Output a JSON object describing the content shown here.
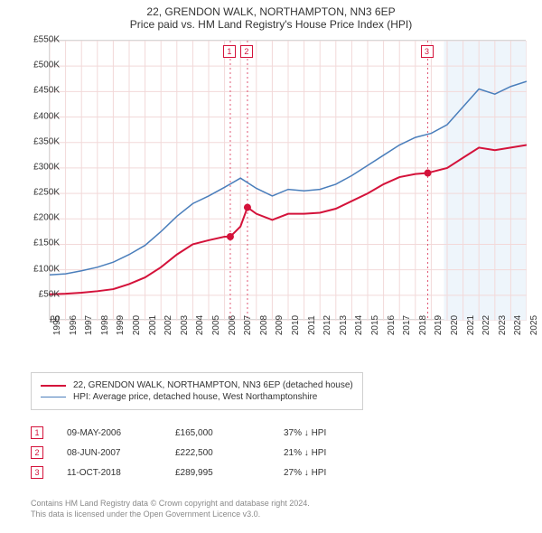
{
  "title": {
    "line1": "22, GRENDON WALK, NORTHAMPTON, NN3 6EP",
    "line2": "Price paid vs. HM Land Registry's House Price Index (HPI)"
  },
  "chart": {
    "type": "line",
    "background_color": "#ffffff",
    "grid_color": "#f2d9d9",
    "axis_color": "#d7d7d7",
    "yaxis": {
      "min": 0,
      "max": 550000,
      "step": 50000,
      "tick_labels": [
        "£0",
        "£50K",
        "£100K",
        "£150K",
        "£200K",
        "£250K",
        "£300K",
        "£350K",
        "£400K",
        "£450K",
        "£500K",
        "£550K"
      ],
      "label_fontsize": 10,
      "label_color": "#333333"
    },
    "xaxis": {
      "min": 1995,
      "max": 2025,
      "tick_years": [
        1995,
        1996,
        1997,
        1998,
        1999,
        2000,
        2001,
        2002,
        2003,
        2004,
        2005,
        2006,
        2007,
        2008,
        2009,
        2010,
        2011,
        2012,
        2013,
        2014,
        2015,
        2016,
        2017,
        2018,
        2019,
        2020,
        2021,
        2022,
        2023,
        2024,
        2025
      ],
      "label_fontsize": 10,
      "label_color": "#333333"
    },
    "forecast_band": {
      "start_year": 2019.8,
      "end_year": 2025,
      "fill": "#eef5fb"
    },
    "series": [
      {
        "name": "property",
        "label": "22, GRENDON WALK, NORTHAMPTON, NN3 6EP (detached house)",
        "color": "#d4123a",
        "width": 2,
        "points": [
          [
            1995,
            52000
          ],
          [
            1996,
            53000
          ],
          [
            1997,
            55000
          ],
          [
            1998,
            58000
          ],
          [
            1999,
            62000
          ],
          [
            2000,
            72000
          ],
          [
            2001,
            85000
          ],
          [
            2002,
            105000
          ],
          [
            2003,
            130000
          ],
          [
            2004,
            150000
          ],
          [
            2005,
            158000
          ],
          [
            2006,
            165000
          ],
          [
            2006.36,
            165000
          ],
          [
            2007,
            185000
          ],
          [
            2007.44,
            222500
          ],
          [
            2008,
            210000
          ],
          [
            2009,
            198000
          ],
          [
            2010,
            210000
          ],
          [
            2011,
            210000
          ],
          [
            2012,
            212000
          ],
          [
            2013,
            220000
          ],
          [
            2014,
            235000
          ],
          [
            2015,
            250000
          ],
          [
            2016,
            268000
          ],
          [
            2017,
            282000
          ],
          [
            2018,
            288000
          ],
          [
            2018.78,
            289995
          ],
          [
            2019,
            292000
          ],
          [
            2020,
            300000
          ],
          [
            2021,
            320000
          ],
          [
            2022,
            340000
          ],
          [
            2023,
            335000
          ],
          [
            2024,
            340000
          ],
          [
            2025,
            345000
          ]
        ]
      },
      {
        "name": "hpi",
        "label": "HPI: Average price, detached house, West Northamptonshire",
        "color": "#4a7ebb",
        "width": 1.5,
        "points": [
          [
            1995,
            90000
          ],
          [
            1996,
            92000
          ],
          [
            1997,
            98000
          ],
          [
            1998,
            105000
          ],
          [
            1999,
            115000
          ],
          [
            2000,
            130000
          ],
          [
            2001,
            148000
          ],
          [
            2002,
            175000
          ],
          [
            2003,
            205000
          ],
          [
            2004,
            230000
          ],
          [
            2005,
            245000
          ],
          [
            2006,
            262000
          ],
          [
            2007,
            280000
          ],
          [
            2008,
            260000
          ],
          [
            2009,
            245000
          ],
          [
            2010,
            258000
          ],
          [
            2011,
            255000
          ],
          [
            2012,
            258000
          ],
          [
            2013,
            268000
          ],
          [
            2014,
            285000
          ],
          [
            2015,
            305000
          ],
          [
            2016,
            325000
          ],
          [
            2017,
            345000
          ],
          [
            2018,
            360000
          ],
          [
            2019,
            368000
          ],
          [
            2020,
            385000
          ],
          [
            2021,
            420000
          ],
          [
            2022,
            455000
          ],
          [
            2023,
            445000
          ],
          [
            2024,
            460000
          ],
          [
            2025,
            470000
          ]
        ]
      }
    ],
    "sale_markers": [
      {
        "n": "1",
        "year": 2006.36,
        "price": 165000,
        "color": "#d4123a"
      },
      {
        "n": "2",
        "year": 2007.44,
        "price": 222500,
        "color": "#d4123a"
      },
      {
        "n": "3",
        "year": 2018.78,
        "price": 289995,
        "color": "#d4123a"
      }
    ]
  },
  "legend": {
    "border_color": "#cfcfcf",
    "fontsize": 10
  },
  "events": [
    {
      "n": "1",
      "date": "09-MAY-2006",
      "price": "£165,000",
      "pct": "37% ↓ HPI",
      "box_color": "#d4123a"
    },
    {
      "n": "2",
      "date": "08-JUN-2007",
      "price": "£222,500",
      "pct": "21% ↓ HPI",
      "box_color": "#d4123a"
    },
    {
      "n": "3",
      "date": "11-OCT-2018",
      "price": "£289,995",
      "pct": "27% ↓ HPI",
      "box_color": "#d4123a"
    }
  ],
  "footer": {
    "line1": "Contains HM Land Registry data © Crown copyright and database right 2024.",
    "line2": "This data is licensed under the Open Government Licence v3.0."
  }
}
